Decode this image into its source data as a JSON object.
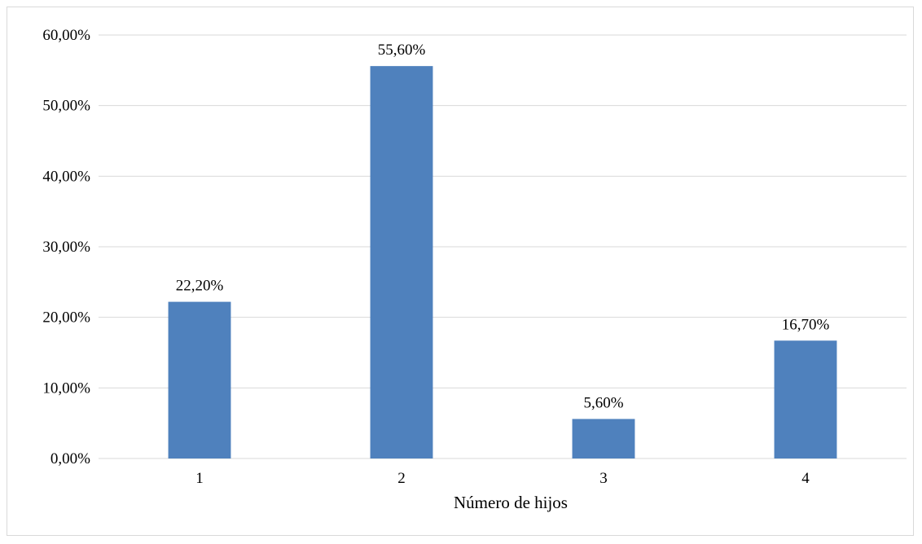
{
  "chart_data": {
    "type": "bar",
    "title": "",
    "xlabel": "Número de hijos",
    "ylabel": "",
    "categories": [
      "1",
      "2",
      "3",
      "4"
    ],
    "values": [
      22.2,
      55.6,
      5.6,
      16.7
    ],
    "data_labels": [
      "22,20%",
      "55,60%",
      "5,60%",
      "16,70%"
    ],
    "ylim": [
      0,
      60
    ],
    "yticks": [
      0,
      10,
      20,
      30,
      40,
      50,
      60
    ],
    "ytick_labels": [
      "0,00%",
      "10,00%",
      "20,00%",
      "30,00%",
      "40,00%",
      "50,00%",
      "60,00%"
    ],
    "grid": true,
    "legend": "none",
    "bar_color": "#4f81bd",
    "grid_color": "#d9d9d9"
  }
}
